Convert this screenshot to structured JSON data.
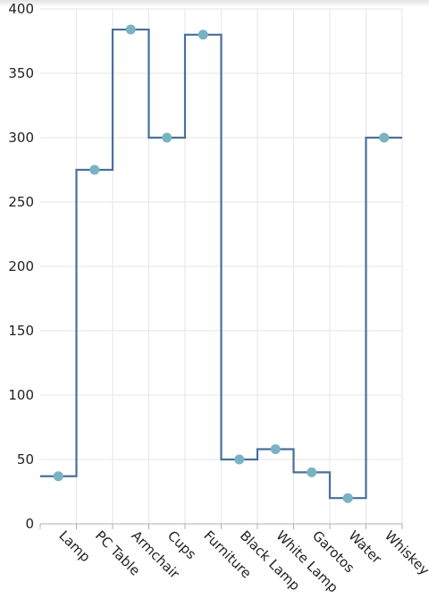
{
  "chart_data": {
    "type": "line",
    "line_style": "step",
    "categories": [
      "Lamp",
      "PC Table",
      "Armchair",
      "Cups",
      "Furniture",
      "Black Lamp",
      "White Lamp",
      "Garotos",
      "Water",
      "Whiskey"
    ],
    "series": [
      {
        "values": [
          37,
          275,
          384,
          300,
          380,
          50,
          58,
          40,
          20,
          300
        ]
      }
    ],
    "ylim": [
      0,
      400
    ],
    "yticks": [
      0,
      50,
      100,
      150,
      200,
      250,
      300,
      350,
      400
    ],
    "grid": true,
    "colors": {
      "line": "#4a6f9b",
      "marker": "#79b3c3",
      "grid": "#e6e6e6",
      "axis": "#b0b0b0"
    }
  }
}
